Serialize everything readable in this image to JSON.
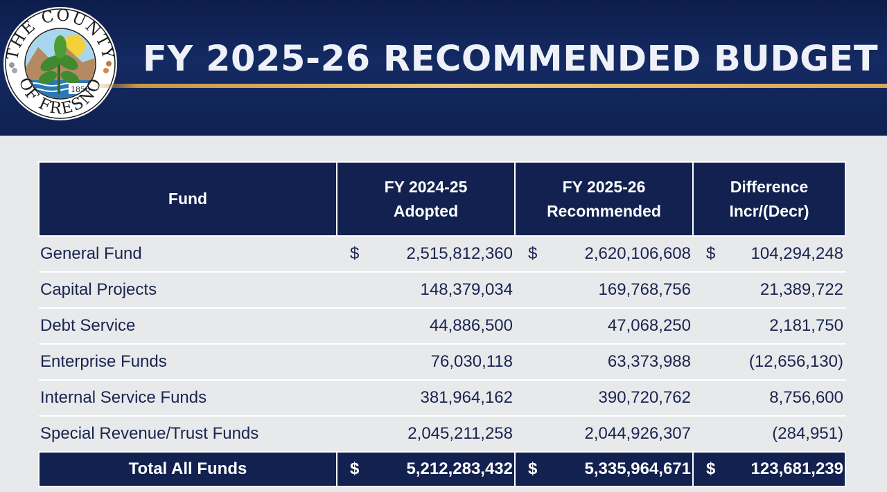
{
  "header": {
    "title": "FY 2025-26 RECOMMENDED BUDGET",
    "seal": {
      "top_text": "THE COUNTY",
      "bottom_text": "OF FRESNO",
      "year": "1856"
    }
  },
  "table": {
    "columns": [
      {
        "line1": "Fund",
        "line2": ""
      },
      {
        "line1": "FY 2024-25",
        "line2": "Adopted"
      },
      {
        "line1": "FY 2025-26",
        "line2": "Recommended"
      },
      {
        "line1": "Difference",
        "line2": "Incr/(Decr)"
      }
    ],
    "rows": [
      {
        "fund": "General Fund",
        "adopted": "2,515,812,360",
        "recommended": "2,620,106,608",
        "difference": "104,294,248",
        "dollar": "$"
      },
      {
        "fund": "Capital Projects",
        "adopted": "148,379,034",
        "recommended": "169,768,756",
        "difference": "21,389,722",
        "dollar": ""
      },
      {
        "fund": "Debt Service",
        "adopted": "44,886,500",
        "recommended": "47,068,250",
        "difference": "2,181,750",
        "dollar": ""
      },
      {
        "fund": "Enterprise Funds",
        "adopted": "76,030,118",
        "recommended": "63,373,988",
        "difference": "(12,656,130)",
        "dollar": ""
      },
      {
        "fund": "Internal Service Funds",
        "adopted": "381,964,162",
        "recommended": "390,720,762",
        "difference": "8,756,600",
        "dollar": ""
      },
      {
        "fund": "Special Revenue/Trust Funds",
        "adopted": "2,045,211,258",
        "recommended": "2,044,926,307",
        "difference": "(284,951)",
        "dollar": ""
      }
    ],
    "total": {
      "fund": "Total All Funds",
      "adopted": "5,212,283,432",
      "recommended": "5,335,964,671",
      "difference": "123,681,239",
      "dollar": "$"
    }
  },
  "colors": {
    "navy": "#12214f",
    "gold": "#d9a857",
    "background": "#e8e9eb"
  }
}
